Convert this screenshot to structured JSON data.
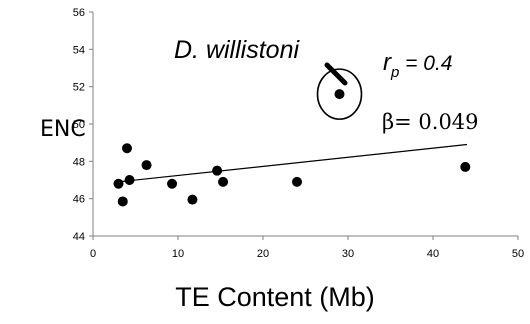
{
  "chart_data": {
    "type": "scatter",
    "xlabel": "TE Content (Mb)",
    "ylabel": "ENC",
    "xlim": [
      0,
      50
    ],
    "ylim": [
      44,
      56
    ],
    "x_ticks": [
      "0",
      "10",
      "20",
      "30",
      "40",
      "50"
    ],
    "y_ticks": [
      "44",
      "46",
      "48",
      "50",
      "52",
      "54",
      "56"
    ],
    "points": [
      {
        "x": 3.0,
        "y": 46.8
      },
      {
        "x": 3.5,
        "y": 45.85
      },
      {
        "x": 4.0,
        "y": 48.7
      },
      {
        "x": 4.3,
        "y": 47.0
      },
      {
        "x": 6.3,
        "y": 47.8
      },
      {
        "x": 9.3,
        "y": 46.8
      },
      {
        "x": 11.7,
        "y": 45.95
      },
      {
        "x": 14.6,
        "y": 47.5
      },
      {
        "x": 15.3,
        "y": 46.9
      },
      {
        "x": 24.0,
        "y": 46.9
      },
      {
        "x": 29.0,
        "y": 51.6
      },
      {
        "x": 43.8,
        "y": 47.7
      }
    ],
    "trendline": {
      "x": [
        3,
        44
      ],
      "y": [
        46.9,
        48.9
      ]
    },
    "annotation": {
      "species": "D. willistoni",
      "species_x": 29.0,
      "species_y": 51.6,
      "r_symbol": "r",
      "r_subscript": "p",
      "r_value": " = 0.4",
      "beta_text": "β= 0.049"
    },
    "grid": false,
    "legend": "none"
  }
}
